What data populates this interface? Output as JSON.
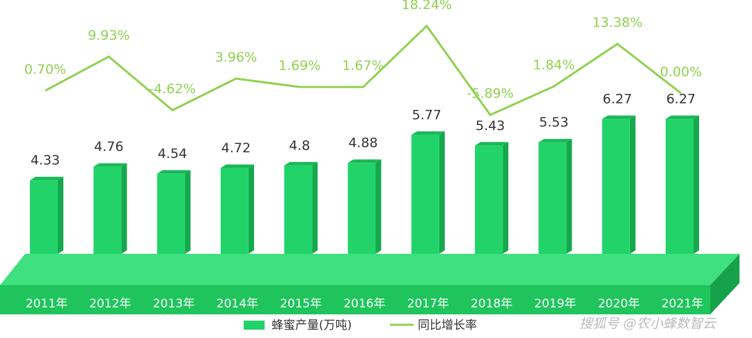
{
  "chart_data": {
    "type": "bar-line",
    "categories": [
      "2011年",
      "2012年",
      "2013年",
      "2014年",
      "2015年",
      "2016年",
      "2017年",
      "2018年",
      "2019年",
      "2020年",
      "2021年"
    ],
    "series": [
      {
        "name": "蜂蜜产量(万吨)",
        "type": "bar",
        "color": "#22d36a",
        "values": [
          4.33,
          4.76,
          4.54,
          4.72,
          4.8,
          4.88,
          5.77,
          5.43,
          5.53,
          6.27,
          6.27
        ]
      },
      {
        "name": "同比增长率",
        "type": "line",
        "axis": "y2",
        "color": "#8fd14f",
        "values": [
          0.7,
          9.93,
          -4.62,
          3.96,
          1.69,
          1.67,
          18.24,
          -5.89,
          1.84,
          13.38,
          0.0
        ],
        "value_labels": [
          "0.70%",
          "9.93%",
          "-4.62%",
          "3.96%",
          "1.69%",
          "1.67%",
          "18.24%",
          "-5.89%",
          "1.84%",
          "13.38%",
          "0.00%"
        ]
      }
    ],
    "ylim": [
      2,
      7
    ],
    "y2lim": [
      -20,
      20
    ],
    "source": "搜狐号 @农小蜂数智云"
  }
}
